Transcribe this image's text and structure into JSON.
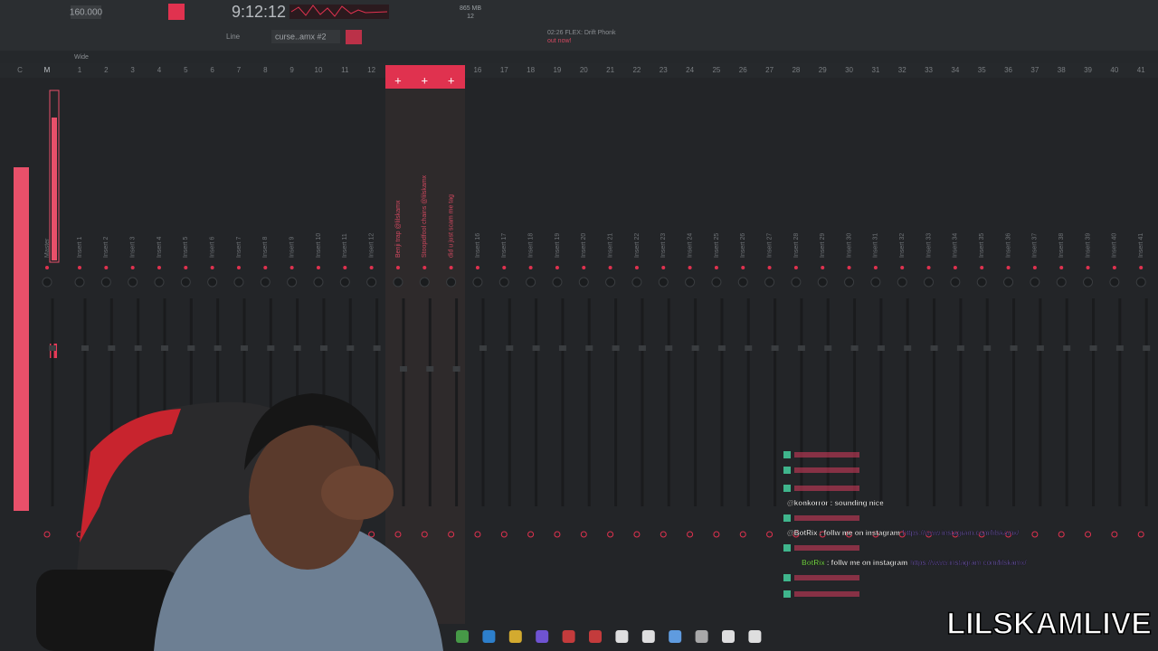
{
  "toolbar": {
    "tempo": "160.000",
    "time": "9:12:12",
    "memory": "865 MB",
    "cpu": "12",
    "pattern": "curse..amx #2",
    "snap": "Line",
    "hint": "02:26 FLEX: Drift Phonk",
    "hint_sub": "out now!"
  },
  "mixer": {
    "view": "Wide",
    "current": "C",
    "tracks": [
      {
        "number": "M",
        "name": "Master"
      },
      {
        "number": 1,
        "name": "Insert 1"
      },
      {
        "number": 2,
        "name": "Insert 2"
      },
      {
        "number": 3,
        "name": "Insert 3"
      },
      {
        "number": 4,
        "name": "Insert 4"
      },
      {
        "number": 5,
        "name": "Insert 5"
      },
      {
        "number": 6,
        "name": "Insert 6"
      },
      {
        "number": 7,
        "name": "Insert 7"
      },
      {
        "number": 8,
        "name": "Insert 8"
      },
      {
        "number": 9,
        "name": "Insert 9"
      },
      {
        "number": 10,
        "name": "Insert 10"
      },
      {
        "number": 11,
        "name": "Insert 11"
      },
      {
        "number": 12,
        "name": "Insert 12"
      },
      {
        "name": "Benji trap @lilskamx"
      },
      {
        "name": "Stoopidfool chains @lilskamx"
      },
      {
        "name": "did u just scam me tag"
      },
      {
        "number": 16,
        "name": "Insert 16"
      },
      {
        "number": 17,
        "name": "Insert 17"
      },
      {
        "number": 18,
        "name": "Insert 18"
      },
      {
        "number": 19,
        "name": "Insert 19"
      },
      {
        "number": 20,
        "name": "Insert 20"
      },
      {
        "number": 21,
        "name": "Insert 21"
      },
      {
        "number": 22,
        "name": "Insert 22"
      },
      {
        "number": 23,
        "name": "Insert 23"
      },
      {
        "number": 24,
        "name": "Insert 24"
      },
      {
        "number": 25,
        "name": "Insert 25"
      },
      {
        "number": 26,
        "name": "Insert 26"
      },
      {
        "number": 27,
        "name": "Insert 27"
      },
      {
        "number": 28,
        "name": "Insert 28"
      },
      {
        "number": 29,
        "name": "Insert 29"
      },
      {
        "number": 30,
        "name": "Insert 30"
      },
      {
        "number": 31,
        "name": "Insert 31"
      },
      {
        "number": 32,
        "name": "Insert 32"
      },
      {
        "number": 33,
        "name": "Insert 33"
      },
      {
        "number": 34,
        "name": "Insert 34"
      },
      {
        "number": 35,
        "name": "Insert 35"
      },
      {
        "number": 36,
        "name": "Insert 36"
      },
      {
        "number": 37,
        "name": "Insert 37"
      },
      {
        "number": 38,
        "name": "Insert 38"
      },
      {
        "number": 39,
        "name": "Insert 39"
      },
      {
        "number": 40,
        "name": "Insert 40"
      },
      {
        "number": 41,
        "name": "Insert 41"
      }
    ]
  },
  "chat": [
    {
      "user": "@konkorror",
      "text": ": sounding nice"
    },
    {
      "user": "@BotRix",
      "text": ": follw me on instagram",
      "link": "https://www.instagram.com/lilskamx/"
    },
    {
      "user": "BotRix",
      "text": ": follw me on instagram",
      "link": "https://www.instagram.com/lilskamx/"
    }
  ],
  "watermark": "LILSKAMLIVE"
}
